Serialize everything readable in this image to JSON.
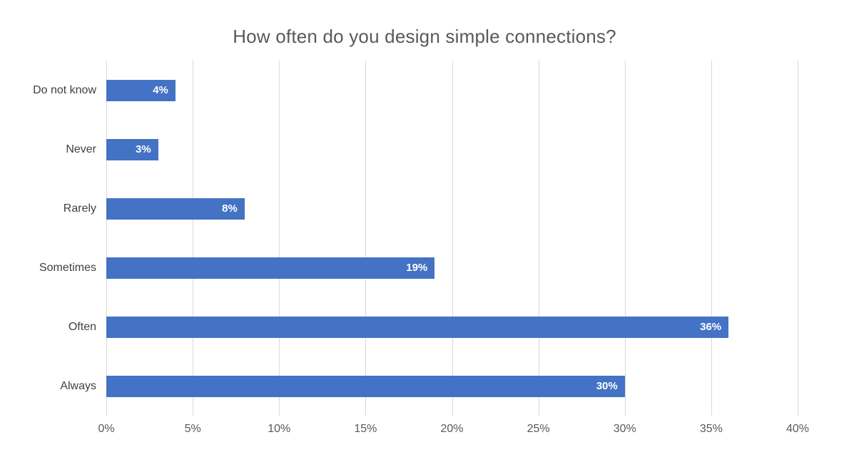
{
  "chart_data": {
    "type": "bar",
    "orientation": "horizontal",
    "title": "How often do you design simple connections?",
    "categories": [
      "Do not know",
      "Never",
      "Rarely",
      "Sometimes",
      "Often",
      "Always"
    ],
    "values": [
      4,
      3,
      8,
      19,
      36,
      30
    ],
    "value_labels": [
      "4%",
      "3%",
      "8%",
      "19%",
      "36%",
      "30%"
    ],
    "xlabel": "",
    "ylabel": "",
    "xlim": [
      0,
      40
    ],
    "x_ticks": [
      "0%",
      "5%",
      "10%",
      "15%",
      "20%",
      "25%",
      "30%",
      "35%",
      "40%"
    ],
    "grid": "vertical-only",
    "legend": "none",
    "colors": {
      "bar": "#4472C4",
      "gridline": "#D9D9D9",
      "title": "#595959",
      "tick_label": "#595959",
      "category_label": "#404040",
      "data_label": "#FFFFFF",
      "background": "#FFFFFF"
    }
  }
}
